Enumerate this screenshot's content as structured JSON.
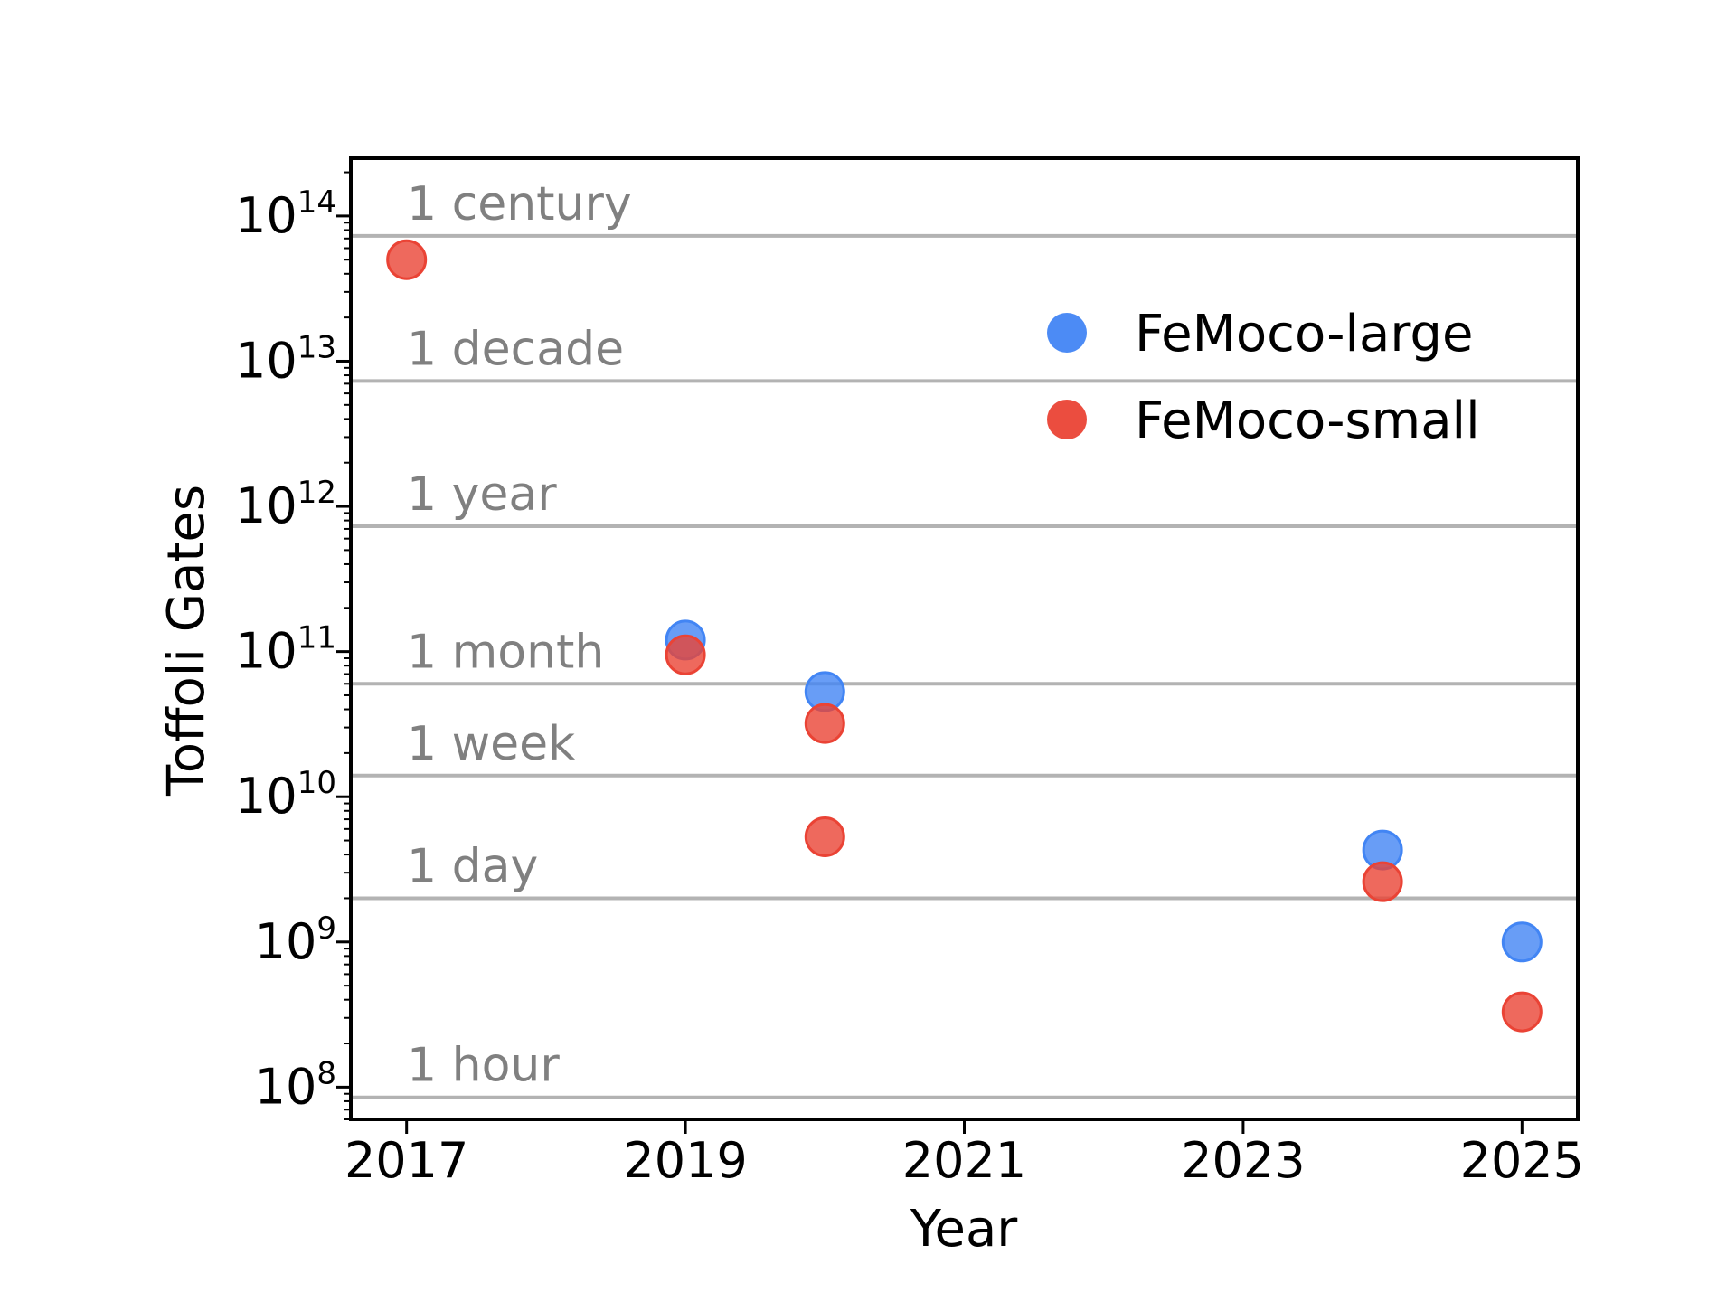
{
  "chart_data": {
    "type": "scatter",
    "title": "",
    "xlabel": "Year",
    "ylabel": "Toffoli Gates",
    "xlim": [
      2016.6,
      2025.4
    ],
    "ylim": [
      60000000.0,
      250000000000000.0
    ],
    "yscale": "log",
    "xticks": [
      2017,
      2019,
      2021,
      2023,
      2025
    ],
    "xtick_labels": [
      "2017",
      "2019",
      "2021",
      "2023",
      "2025"
    ],
    "yticks": [
      {
        "base": "10",
        "exp": "8",
        "value": 100000000.0
      },
      {
        "base": "10",
        "exp": "9",
        "value": 1000000000.0
      },
      {
        "base": "10",
        "exp": "10",
        "value": 10000000000.0
      },
      {
        "base": "10",
        "exp": "11",
        "value": 100000000000.0
      },
      {
        "base": "10",
        "exp": "12",
        "value": 1000000000000.0
      },
      {
        "base": "10",
        "exp": "13",
        "value": 10000000000000.0
      },
      {
        "base": "10",
        "exp": "14",
        "value": 100000000000000.0
      }
    ],
    "reference_lines": [
      {
        "label": "1 hour",
        "value": 85000000.0
      },
      {
        "label": "1 day",
        "value": 2000000000.0
      },
      {
        "label": "1 week",
        "value": 14000000000.0
      },
      {
        "label": "1 month",
        "value": 60000000000.0
      },
      {
        "label": "1 year",
        "value": 730000000000.0
      },
      {
        "label": "1 decade",
        "value": 7300000000000.0
      },
      {
        "label": "1 century",
        "value": 73000000000000.0
      }
    ],
    "series": [
      {
        "name": "FeMoco-large",
        "color": "#4285F4",
        "points": [
          {
            "x": 2019,
            "y": 120000000000.0
          },
          {
            "x": 2020,
            "y": 53000000000.0
          },
          {
            "x": 2024,
            "y": 4300000000.0
          },
          {
            "x": 2025,
            "y": 1000000000.0
          }
        ]
      },
      {
        "name": "FeMoco-small",
        "color": "#EA4335",
        "points": [
          {
            "x": 2017,
            "y": 50000000000000.0
          },
          {
            "x": 2019,
            "y": 95000000000.0
          },
          {
            "x": 2020,
            "y": 32000000000.0
          },
          {
            "x": 2020,
            "y": 5300000000.0
          },
          {
            "x": 2024,
            "y": 2600000000.0
          },
          {
            "x": 2025,
            "y": 330000000.0
          }
        ]
      }
    ],
    "legend": {
      "position": "top-right"
    },
    "grid": false
  }
}
